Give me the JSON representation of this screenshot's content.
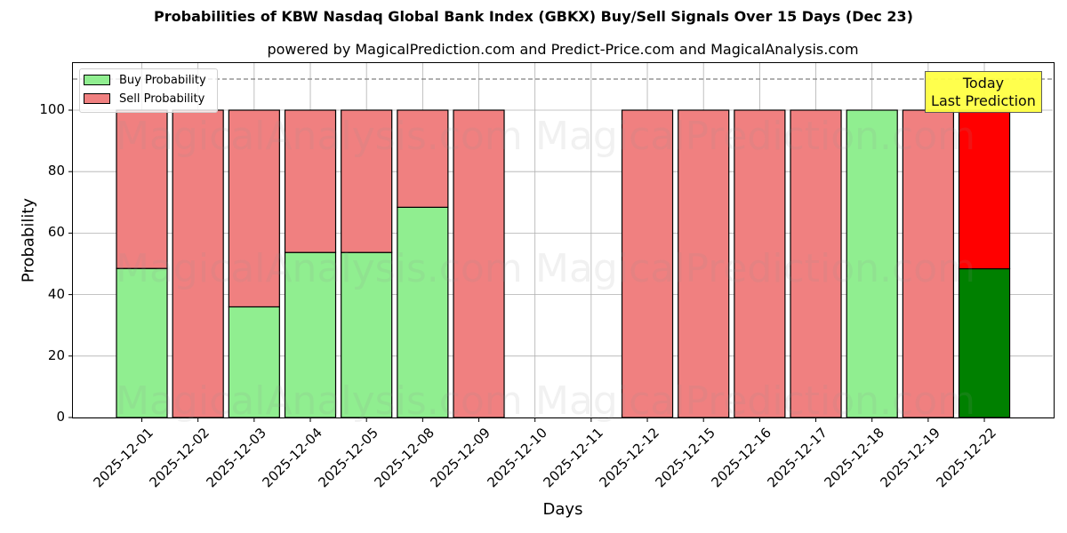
{
  "title": "Probabilities of KBW Nasdaq Global Bank Index (GBKX) Buy/Sell Signals Over 15 Days (Dec 23)",
  "subtitle": "powered by MagicalPrediction.com and Predict-Price.com and MagicalAnalysis.com",
  "annotation": {
    "line1": "Today",
    "line2": "Last Prediction"
  },
  "watermarks": [
    "MagicalAnalysis.com",
    "MagicalPrediction.com"
  ],
  "colors": {
    "buy": "#90ee90",
    "sell": "#f08080",
    "today_buy": "#008000",
    "today_sell": "#ff0000",
    "annotation_bg": "#ffff44",
    "threshold_line": "#808080"
  },
  "chart_data": {
    "type": "bar",
    "stacked": true,
    "title": "Probabilities of KBW Nasdaq Global Bank Index (GBKX) Buy/Sell Signals Over 15 Days (Dec 23)",
    "subtitle": "powered by MagicalPrediction.com and Predict-Price.com and MagicalAnalysis.com",
    "xlabel": "Days",
    "ylabel": "Probability",
    "ylim": [
      0,
      115
    ],
    "yticks": [
      0,
      20,
      40,
      60,
      80,
      100
    ],
    "grid": true,
    "legend_position": "upper left",
    "threshold_line": {
      "y": 110,
      "style": "dashed"
    },
    "categories": [
      "2025-12-01",
      "2025-12-02",
      "2025-12-03",
      "2025-12-04",
      "2025-12-05",
      "2025-12-08",
      "2025-12-09",
      "2025-12-10",
      "2025-12-11",
      "2025-12-12",
      "2025-12-15",
      "2025-12-16",
      "2025-12-17",
      "2025-12-18",
      "2025-12-19",
      "2025-12-22"
    ],
    "series": [
      {
        "name": "Buy Probability",
        "values": [
          48.5,
          0,
          36,
          53.7,
          53.7,
          68.4,
          0,
          null,
          null,
          0,
          0,
          0,
          0,
          100,
          0,
          48.4
        ]
      },
      {
        "name": "Sell Probability",
        "values": [
          51.5,
          100,
          64,
          46.3,
          46.3,
          31.6,
          100,
          null,
          null,
          100,
          100,
          100,
          100,
          0,
          100,
          51.6
        ]
      }
    ],
    "highlight": {
      "category": "2025-12-22",
      "label": "Today Last Prediction"
    }
  }
}
